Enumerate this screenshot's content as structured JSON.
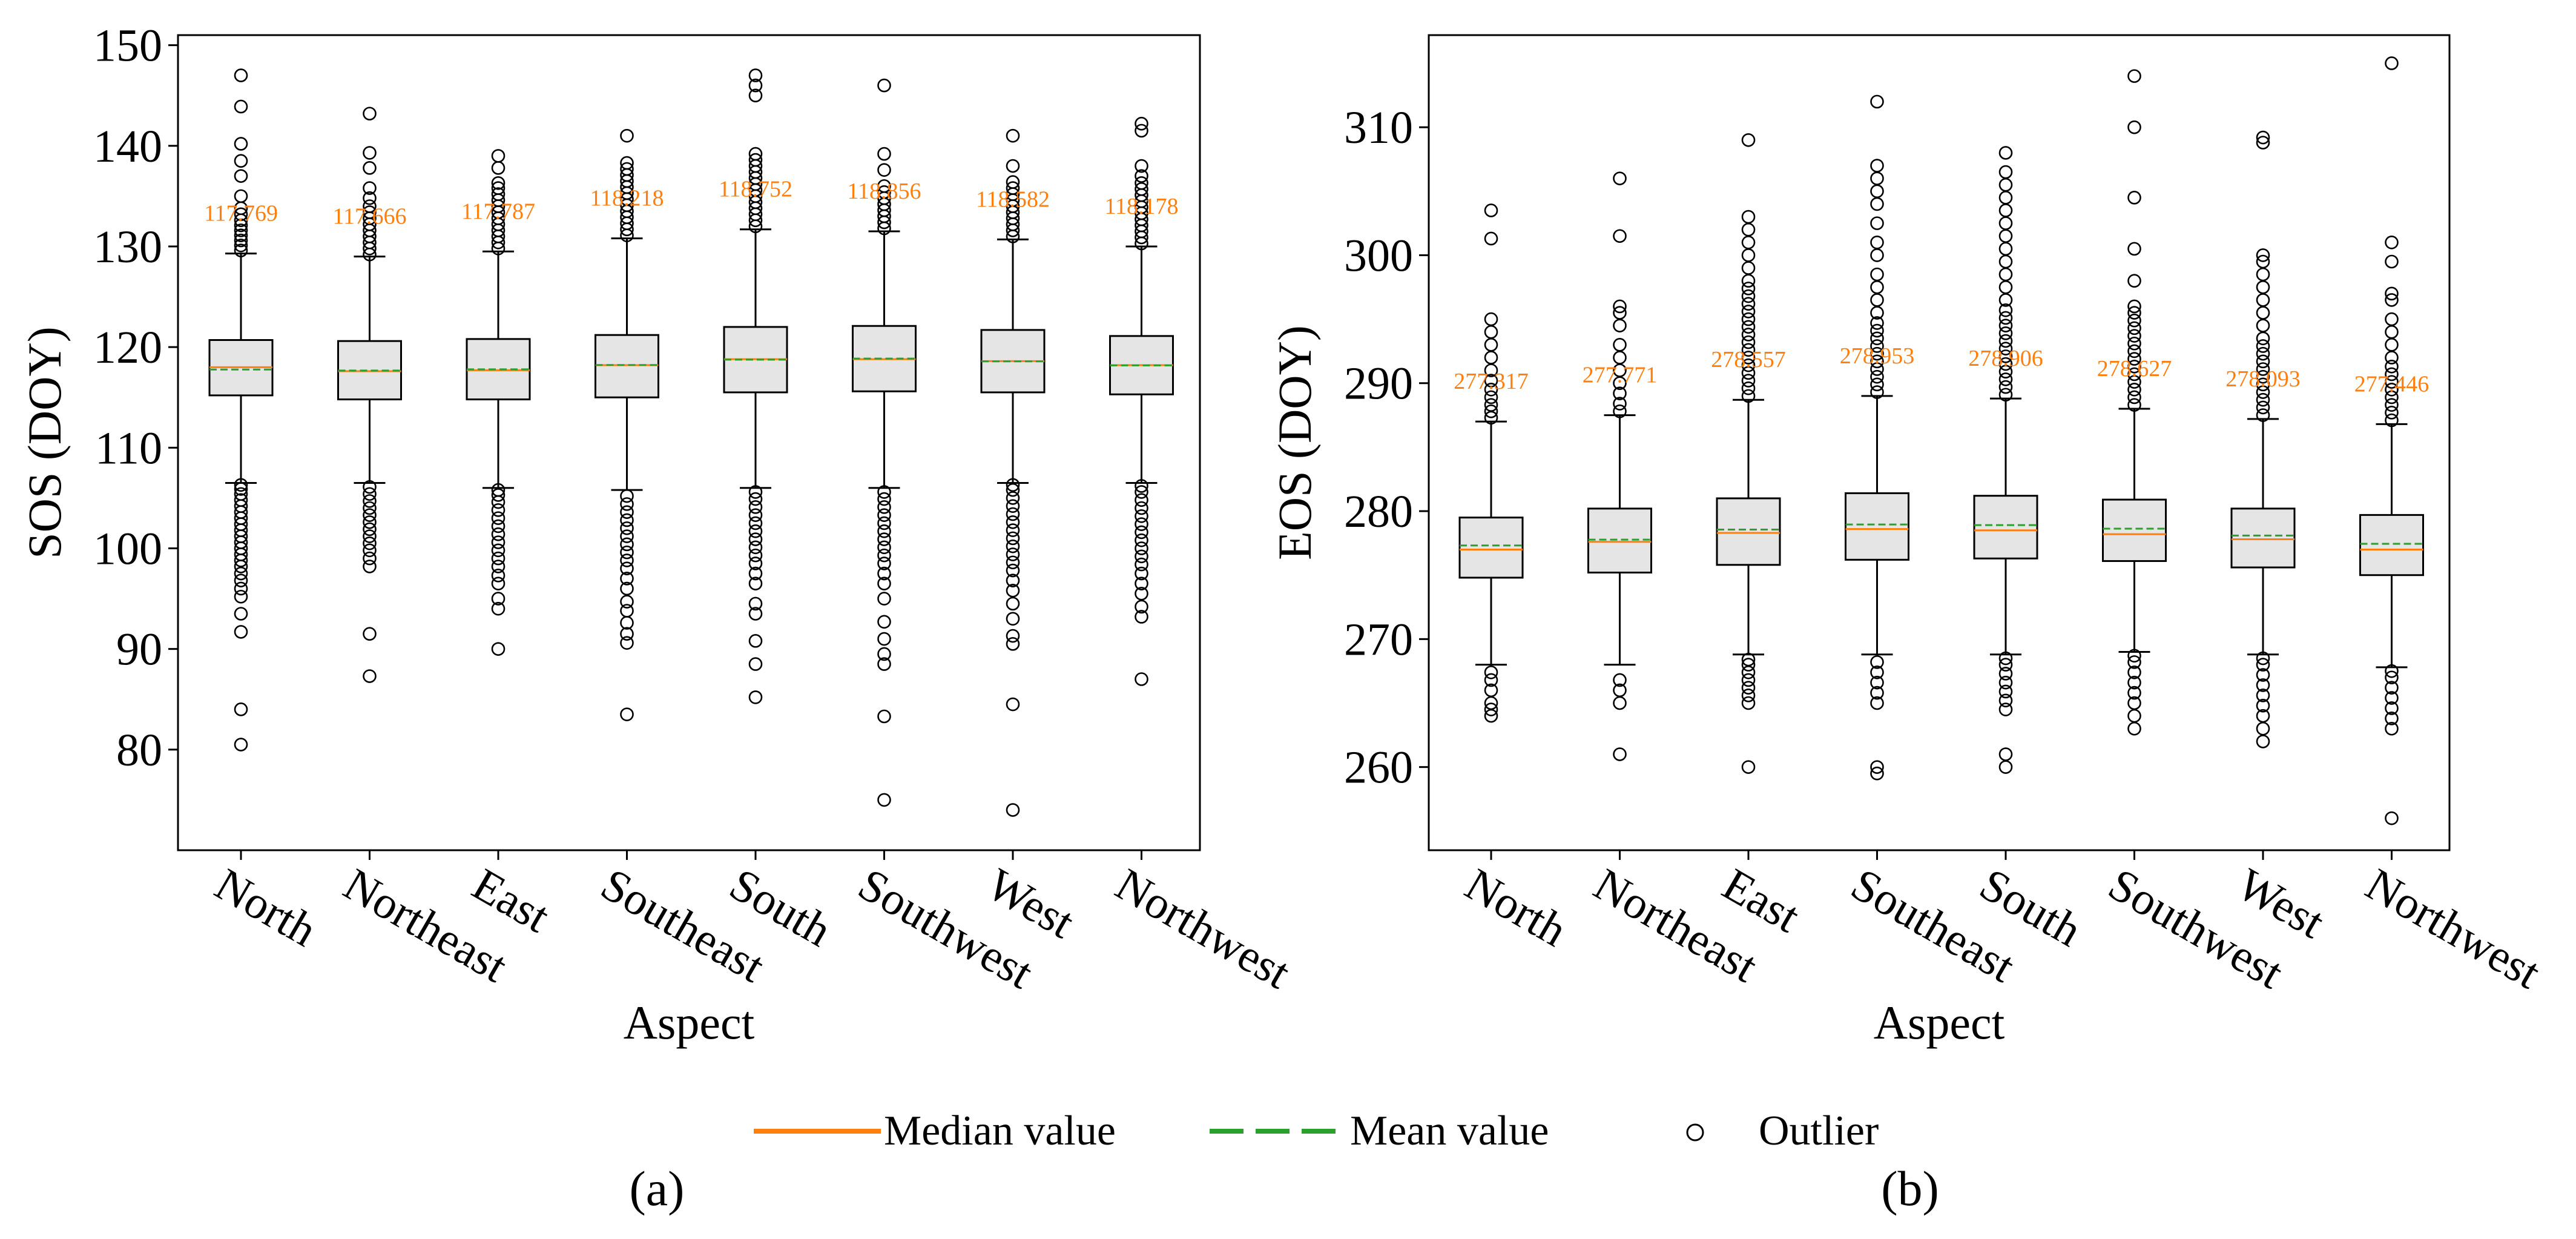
{
  "chart_data": [
    {
      "type": "box",
      "panel": "(a)",
      "xlabel": "Aspect",
      "ylabel": "SOS (DOY)",
      "ylim": [
        70,
        151
      ],
      "yticks": [
        80,
        90,
        100,
        110,
        120,
        130,
        140,
        150
      ],
      "categories": [
        "North",
        "Northeast",
        "East",
        "Southeast",
        "South",
        "Southwest",
        "West",
        "Northwest"
      ],
      "boxes": [
        {
          "q1": 115.2,
          "median": 118.0,
          "mean": 117.769,
          "q3": 120.7,
          "whisker_low": 106.5,
          "whisker_high": 129.3,
          "mean_label": "117.769",
          "outliers": [
            80.5,
            84.0,
            91.7,
            93.5,
            95.2,
            96.0,
            96.8,
            97.5,
            98.2,
            98.8,
            99.4,
            100.0,
            100.6,
            101.2,
            101.8,
            102.4,
            103.0,
            103.6,
            104.2,
            104.8,
            105.4,
            105.9,
            106.3,
            129.6,
            130.1,
            130.6,
            131.1,
            131.6,
            132.1,
            132.6,
            133.2,
            133.8,
            135.0,
            137.0,
            138.5,
            140.2,
            143.9,
            147.0
          ]
        },
        {
          "q1": 114.8,
          "median": 117.6,
          "mean": 117.666,
          "q3": 120.6,
          "whisker_low": 106.5,
          "whisker_high": 129.0,
          "mean_label": "117.666",
          "outliers": [
            87.3,
            91.5,
            98.2,
            99.0,
            99.8,
            100.5,
            101.2,
            101.9,
            102.6,
            103.3,
            104.0,
            104.7,
            105.4,
            106.1,
            129.2,
            129.8,
            130.4,
            131.0,
            131.6,
            132.2,
            132.8,
            133.4,
            134.0,
            134.8,
            135.8,
            137.8,
            139.3,
            143.2
          ]
        },
        {
          "q1": 114.8,
          "median": 117.7,
          "mean": 117.787,
          "q3": 120.8,
          "whisker_low": 106.0,
          "whisker_high": 129.5,
          "mean_label": "117.787",
          "outliers": [
            90.0,
            94.0,
            95.0,
            96.5,
            97.3,
            98.2,
            99.0,
            99.8,
            100.6,
            101.4,
            102.2,
            103.0,
            103.8,
            104.6,
            105.3,
            105.8,
            129.8,
            130.4,
            131.0,
            131.6,
            132.2,
            132.8,
            133.4,
            134.0,
            134.6,
            135.2,
            135.8,
            136.3,
            137.8,
            139.0
          ]
        },
        {
          "q1": 115.0,
          "median": 118.2,
          "mean": 118.218,
          "q3": 121.2,
          "whisker_low": 105.8,
          "whisker_high": 130.8,
          "mean_label": "118.218",
          "outliers": [
            83.5,
            90.6,
            91.5,
            92.6,
            93.8,
            94.7,
            96.0,
            97.0,
            98.0,
            98.8,
            99.6,
            100.4,
            101.2,
            102.0,
            102.8,
            103.6,
            104.4,
            105.2,
            131.1,
            131.7,
            132.3,
            132.9,
            133.5,
            134.1,
            134.7,
            135.3,
            135.9,
            136.5,
            137.1,
            137.7,
            138.3,
            141.0
          ]
        },
        {
          "q1": 115.5,
          "median": 118.8,
          "mean": 118.752,
          "q3": 122.0,
          "whisker_low": 106.0,
          "whisker_high": 131.7,
          "mean_label": "118.752",
          "outliers": [
            85.2,
            88.5,
            90.8,
            93.5,
            94.5,
            96.5,
            97.5,
            98.5,
            99.3,
            100.1,
            100.9,
            101.7,
            102.5,
            103.3,
            104.1,
            104.9,
            105.6,
            132.0,
            132.6,
            133.2,
            133.8,
            134.4,
            135.0,
            135.6,
            136.2,
            136.8,
            137.4,
            138.0,
            138.6,
            139.2,
            145.0,
            146.0,
            147.0
          ]
        },
        {
          "q1": 115.6,
          "median": 118.8,
          "mean": 118.856,
          "q3": 122.1,
          "whisker_low": 106.0,
          "whisker_high": 131.5,
          "mean_label": "118.856",
          "outliers": [
            75.0,
            83.3,
            88.5,
            89.5,
            91.0,
            92.7,
            95.0,
            96.5,
            97.5,
            98.5,
            99.3,
            100.1,
            100.9,
            101.7,
            102.5,
            103.3,
            104.1,
            104.9,
            105.6,
            131.8,
            132.4,
            133.0,
            133.6,
            134.2,
            134.8,
            135.4,
            136.0,
            137.6,
            139.2,
            146.0
          ]
        },
        {
          "q1": 115.5,
          "median": 118.6,
          "mean": 118.582,
          "q3": 121.7,
          "whisker_low": 106.5,
          "whisker_high": 130.7,
          "mean_label": "118.582",
          "outliers": [
            74.0,
            84.5,
            90.5,
            91.3,
            93.0,
            94.5,
            95.8,
            96.8,
            97.8,
            98.6,
            99.4,
            100.2,
            101.0,
            101.8,
            102.6,
            103.4,
            104.2,
            105.0,
            105.8,
            106.3,
            131.0,
            131.6,
            132.2,
            132.8,
            133.4,
            134.0,
            134.6,
            135.2,
            135.8,
            136.4,
            138.0,
            141.0
          ]
        },
        {
          "q1": 115.3,
          "median": 118.2,
          "mean": 118.178,
          "q3": 121.1,
          "whisker_low": 106.5,
          "whisker_high": 130.0,
          "mean_label": "118.178",
          "outliers": [
            87.0,
            93.2,
            94.2,
            95.5,
            96.5,
            97.5,
            98.4,
            99.2,
            100.0,
            100.8,
            101.6,
            102.4,
            103.2,
            104.0,
            104.8,
            105.6,
            106.2,
            130.3,
            130.9,
            131.5,
            132.1,
            132.7,
            133.3,
            133.9,
            134.5,
            135.1,
            135.7,
            136.3,
            137.0,
            138.0,
            141.5,
            142.2
          ]
        }
      ]
    },
    {
      "type": "box",
      "panel": "(b)",
      "xlabel": "Aspect",
      "ylabel": "EOS (DOY)",
      "ylim": [
        253.5,
        317.2
      ],
      "yticks": [
        260,
        270,
        280,
        290,
        300,
        310
      ],
      "categories": [
        "North",
        "Northeast",
        "East",
        "Southeast",
        "South",
        "Southwest",
        "West",
        "Northwest"
      ],
      "boxes": [
        {
          "q1": 274.8,
          "median": 277.0,
          "mean": 277.317,
          "q3": 279.5,
          "whisker_low": 268.0,
          "whisker_high": 287.0,
          "mean_label": "277.317",
          "outliers": [
            264.0,
            264.5,
            265.0,
            266.0,
            266.8,
            267.4,
            287.3,
            287.8,
            288.3,
            288.9,
            289.5,
            290.2,
            291.0,
            292.0,
            293.0,
            294.0,
            295.0,
            301.3,
            303.5
          ]
        },
        {
          "q1": 275.2,
          "median": 277.6,
          "mean": 277.771,
          "q3": 280.2,
          "whisker_low": 268.0,
          "whisker_high": 287.5,
          "mean_label": "277.771",
          "outliers": [
            261.0,
            265.0,
            266.0,
            266.8,
            287.8,
            288.4,
            289.2,
            290.0,
            291.0,
            292.0,
            293.0,
            294.5,
            295.5,
            296.0,
            301.5,
            306.0
          ]
        },
        {
          "q1": 275.8,
          "median": 278.3,
          "mean": 278.557,
          "q3": 281.0,
          "whisker_low": 268.8,
          "whisker_high": 288.7,
          "mean_label": "278.557",
          "outliers": [
            260.0,
            265.0,
            265.6,
            266.2,
            266.8,
            267.4,
            268.0,
            268.4,
            289.0,
            289.6,
            290.2,
            290.8,
            291.4,
            292.0,
            292.6,
            293.2,
            293.8,
            294.4,
            295.0,
            295.6,
            296.2,
            296.8,
            297.4,
            298.0,
            299.0,
            300.0,
            301.0,
            302.0,
            303.0,
            309.0
          ]
        },
        {
          "q1": 276.2,
          "median": 278.6,
          "mean": 278.953,
          "q3": 281.4,
          "whisker_low": 268.8,
          "whisker_high": 289.0,
          "mean_label": "278.953",
          "outliers": [
            259.5,
            260.0,
            265.0,
            265.8,
            266.6,
            267.4,
            268.2,
            289.3,
            289.9,
            290.5,
            291.1,
            291.7,
            292.3,
            292.9,
            293.5,
            294.1,
            294.7,
            295.5,
            296.5,
            297.5,
            298.5,
            300.0,
            301.0,
            302.5,
            304.0,
            305.0,
            306.0,
            307.0,
            312.0
          ]
        },
        {
          "q1": 276.3,
          "median": 278.5,
          "mean": 278.906,
          "q3": 281.2,
          "whisker_low": 268.8,
          "whisker_high": 288.8,
          "mean_label": "278.906",
          "outliers": [
            260.0,
            261.0,
            264.5,
            265.2,
            265.9,
            266.6,
            267.3,
            268.0,
            268.5,
            289.1,
            289.7,
            290.3,
            290.9,
            291.5,
            292.1,
            292.7,
            293.3,
            293.9,
            294.5,
            295.1,
            295.7,
            296.5,
            297.5,
            298.5,
            299.5,
            300.5,
            301.5,
            302.5,
            303.5,
            304.5,
            305.5,
            306.5,
            308.0
          ]
        },
        {
          "q1": 276.1,
          "median": 278.2,
          "mean": 278.627,
          "q3": 280.9,
          "whisker_low": 269.0,
          "whisker_high": 288.0,
          "mean_label": "278.627",
          "outliers": [
            263.0,
            264.0,
            265.0,
            265.8,
            266.6,
            267.4,
            268.2,
            268.7,
            288.3,
            288.9,
            289.5,
            290.1,
            290.7,
            291.3,
            291.9,
            292.5,
            293.1,
            293.7,
            294.3,
            294.9,
            295.5,
            296.0,
            298.0,
            300.5,
            304.5,
            310.0,
            314.0
          ]
        },
        {
          "q1": 275.6,
          "median": 277.8,
          "mean": 278.093,
          "q3": 280.2,
          "whisker_low": 268.8,
          "whisker_high": 287.2,
          "mean_label": "278.093",
          "outliers": [
            262.0,
            263.0,
            264.0,
            264.8,
            265.6,
            266.4,
            267.2,
            268.0,
            268.5,
            287.5,
            288.1,
            288.7,
            289.3,
            289.9,
            290.5,
            291.1,
            291.7,
            292.3,
            292.9,
            293.5,
            294.5,
            295.5,
            296.5,
            297.5,
            298.5,
            299.5,
            300.0,
            308.8,
            309.2
          ]
        },
        {
          "q1": 275.0,
          "median": 277.0,
          "mean": 277.446,
          "q3": 279.7,
          "whisker_low": 267.8,
          "whisker_high": 286.8,
          "mean_label": "277.446",
          "outliers": [
            256.0,
            263.0,
            263.8,
            264.6,
            265.4,
            266.2,
            267.0,
            267.5,
            287.1,
            287.7,
            288.3,
            288.9,
            289.5,
            290.1,
            290.7,
            291.3,
            292.0,
            293.0,
            294.0,
            295.0,
            296.5,
            297.0,
            299.5,
            301.0,
            315.0
          ]
        }
      ]
    }
  ],
  "legend": {
    "median_label": "Median value",
    "mean_label": "Mean value",
    "outlier_label": "Outlier"
  },
  "colors": {
    "median": "#ff7f0e",
    "mean": "#2ca02c",
    "box_fill": "#e5e5e5",
    "value_label": "#ff7f0e"
  }
}
